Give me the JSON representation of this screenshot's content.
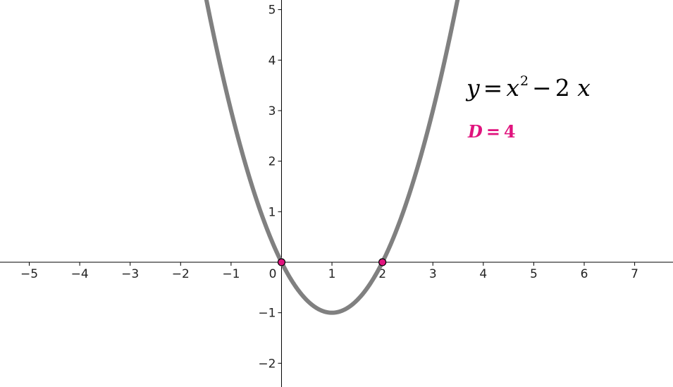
{
  "chart_data": {
    "type": "line",
    "xlim": [
      -5.58,
      7.76
    ],
    "ylim": [
      -2.47,
      5.19
    ],
    "x_ticks": [
      -5,
      -4,
      -3,
      -2,
      -1,
      1,
      2,
      3,
      4,
      5,
      6,
      7
    ],
    "y_ticks": [
      -2,
      -1,
      1,
      2,
      3,
      4,
      5
    ],
    "x_tick_labels": [
      "−5",
      "−4",
      "−3",
      "−2",
      "−1",
      "1",
      "2",
      "3",
      "4",
      "5",
      "6",
      "7"
    ],
    "y_tick_labels": [
      "−2",
      "−1",
      "1",
      "2",
      "3",
      "4",
      "5"
    ],
    "origin_label": "0",
    "series": [
      {
        "function": "x^2 - 2x",
        "coefficients": {
          "a": 1,
          "b": -2,
          "c": 0
        },
        "x_range": [
          -1.6,
          3.6
        ],
        "color": "#808080"
      }
    ],
    "points": [
      {
        "x": 0,
        "y": 0,
        "color": "#e0147e"
      },
      {
        "x": 2,
        "y": 0,
        "color": "#e0147e"
      }
    ],
    "equation": {
      "y": "y",
      "eq": "=",
      "x": "x",
      "power": "2",
      "minus": "−",
      "coef": "2",
      "x2": "x"
    },
    "discriminant": {
      "var": "D",
      "eq": "=",
      "value": "4"
    },
    "grid": false,
    "colors": {
      "curve": "#808080",
      "points": "#e0147e",
      "axes": "#000000",
      "discriminant": "#e0147e"
    }
  }
}
